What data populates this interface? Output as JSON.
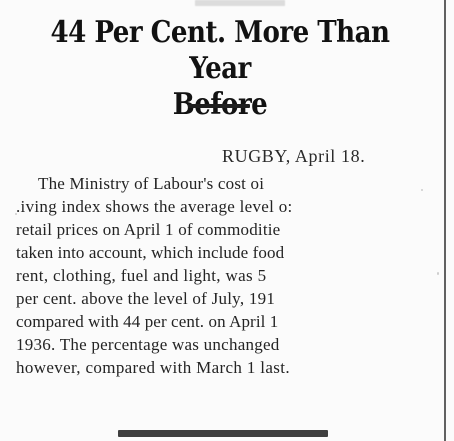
{
  "headline": {
    "line1": "44 Per Cent. More Than Year",
    "line2": "Before"
  },
  "dateline": "RUGBY, April 18.",
  "body_lines": [
    "The Ministry of Labour's cost oi",
    ".iving index shows the average level o:",
    "retail prices on April 1 of commoditie",
    "taken into account, which include food",
    "rent, clothing, fuel and light, was 5",
    "per cent. above the level of July, 191",
    "compared with 44 per cent. on April 1",
    "1936. The percentage was unchanged",
    "however, compared with March 1 last."
  ]
}
